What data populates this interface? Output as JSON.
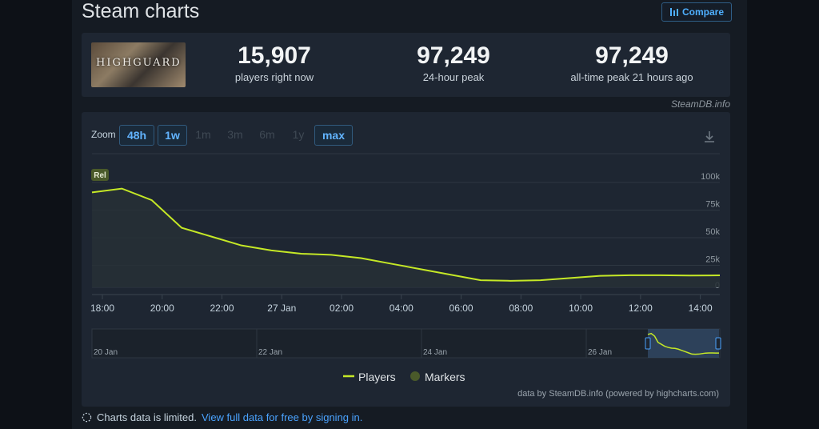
{
  "header": {
    "title": "Steam charts",
    "compare_label": "Compare"
  },
  "game": {
    "logo_text": "HIGHGUARD"
  },
  "stats": [
    {
      "value": "15,907",
      "label": "players right now"
    },
    {
      "value": "97,249",
      "label": "24-hour peak"
    },
    {
      "value": "97,249",
      "label": "all-time peak 21 hours ago"
    }
  ],
  "source_label": "SteamDB.info",
  "zoom": {
    "label": "Zoom",
    "options": [
      {
        "label": "48h",
        "state": "active"
      },
      {
        "label": "1w",
        "state": "active"
      },
      {
        "label": "1m",
        "state": "disabled"
      },
      {
        "label": "3m",
        "state": "disabled"
      },
      {
        "label": "6m",
        "state": "disabled"
      },
      {
        "label": "1y",
        "state": "disabled"
      },
      {
        "label": "max",
        "state": "active"
      }
    ]
  },
  "chart_data": {
    "type": "line",
    "series": [
      {
        "name": "Players",
        "color": "#c5e826",
        "x_hours": [
          0,
          1,
          2,
          3,
          4,
          5,
          6,
          7,
          8,
          9,
          10,
          11,
          12,
          13,
          14,
          15,
          16,
          17,
          18,
          19,
          20,
          21
        ],
        "values": [
          91000,
          94500,
          84000,
          59000,
          51000,
          43000,
          38500,
          35500,
          34500,
          31500,
          26500,
          21500,
          16500,
          11500,
          11000,
          11500,
          13500,
          15500,
          16000,
          16000,
          15800,
          15907
        ]
      }
    ],
    "markers_legend": {
      "name": "Markers",
      "color": "#4a5a2a"
    },
    "marker_label": "Rel",
    "x_ticks": [
      "18:00",
      "20:00",
      "22:00",
      "27 Jan",
      "02:00",
      "04:00",
      "06:00",
      "08:00",
      "10:00",
      "12:00",
      "14:00"
    ],
    "y_ticks": [
      "0",
      "25k",
      "50k",
      "75k",
      "100k"
    ],
    "ylim": [
      0,
      100000
    ],
    "navigator_labels": [
      "20 Jan",
      "22 Jan",
      "24 Jan",
      "26 Jan"
    ],
    "credits": "data by SteamDB.info (powered by highcharts.com)",
    "grid": true,
    "legend_position": "bottom-center"
  },
  "footnote": {
    "text": "Charts data is limited.",
    "link": "View full data for free by signing in."
  }
}
